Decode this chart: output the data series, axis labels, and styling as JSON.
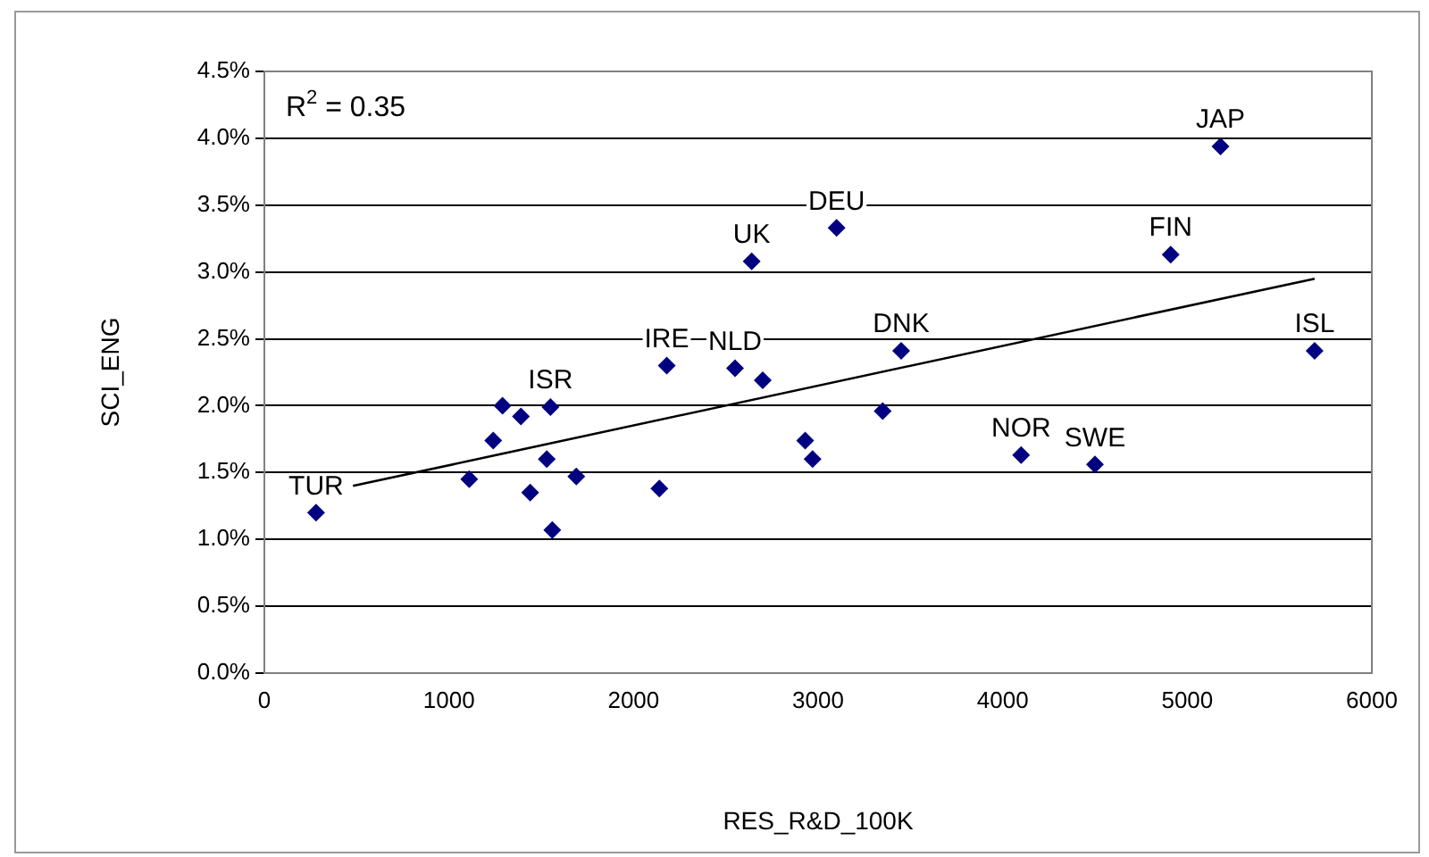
{
  "chart_data": {
    "type": "scatter",
    "xlabel": "RES_R&D_100K",
    "ylabel": "SCI_ENG",
    "xlim": [
      0,
      6000
    ],
    "xticks": [
      0,
      1000,
      2000,
      3000,
      4000,
      5000,
      6000
    ],
    "ylim": [
      0,
      4.5
    ],
    "yticks": [
      {
        "value": 0,
        "label": "0.0%"
      },
      {
        "value": 0.5,
        "label": "0.5%"
      },
      {
        "value": 1,
        "label": "1.0%"
      },
      {
        "value": 1.5,
        "label": "1.5%"
      },
      {
        "value": 2,
        "label": "2.0%"
      },
      {
        "value": 2.5,
        "label": "2.5%"
      },
      {
        "value": 3,
        "label": "3.0%"
      },
      {
        "value": 3.5,
        "label": "3.5%"
      },
      {
        "value": 4,
        "label": "4.0%"
      },
      {
        "value": 4.5,
        "label": "4.5%"
      }
    ],
    "grid": "y",
    "legend": false,
    "marker": "diamond",
    "series": [
      {
        "type": "scatter",
        "color": "#000080",
        "x": [
          280,
          1110,
          1240,
          1290,
          1390,
          1440,
          1530,
          1550,
          1560,
          1690,
          2140,
          2180,
          2550,
          2700,
          2640,
          3100,
          3350,
          3450,
          2930,
          2970,
          4100,
          4500,
          4910,
          5180,
          5690
        ],
        "values": [
          1.2,
          1.45,
          1.74,
          2.0,
          1.92,
          1.35,
          1.6,
          1.99,
          1.07,
          1.47,
          1.38,
          2.3,
          2.28,
          2.19,
          3.08,
          3.33,
          1.96,
          2.41,
          1.74,
          1.6,
          1.63,
          1.56,
          3.13,
          3.94,
          2.41
        ]
      },
      {
        "type": "line",
        "color": "#000000",
        "marker": "none",
        "x": [
          480,
          5690
        ],
        "values": [
          1.4,
          2.95
        ]
      }
    ],
    "annotations": [
      "R$^{2}$ = 0.35",
      {
        "text": "TUR",
        "x": 280,
        "y": 1.2
      },
      {
        "text": "ISR",
        "x": 1550,
        "y": 1.99
      },
      {
        "text": "IRE",
        "x": 2180,
        "y": 2.3
      },
      {
        "text": "NLD",
        "x": 2550,
        "y": 2.28
      },
      {
        "text": "UK",
        "x": 2640,
        "y": 3.08
      },
      {
        "text": "DEU",
        "x": 3100,
        "y": 3.33
      },
      {
        "text": "DNK",
        "x": 3450,
        "y": 2.41
      },
      {
        "text": "NOR",
        "x": 4100,
        "y": 1.63
      },
      {
        "text": "SWE",
        "x": 4500,
        "y": 1.56
      },
      {
        "text": "FIN",
        "x": 4910,
        "y": 3.13
      },
      {
        "text": "JAP",
        "x": 5180,
        "y": 3.94
      },
      {
        "text": "ISL",
        "x": 5690,
        "y": 2.41
      }
    ]
  }
}
